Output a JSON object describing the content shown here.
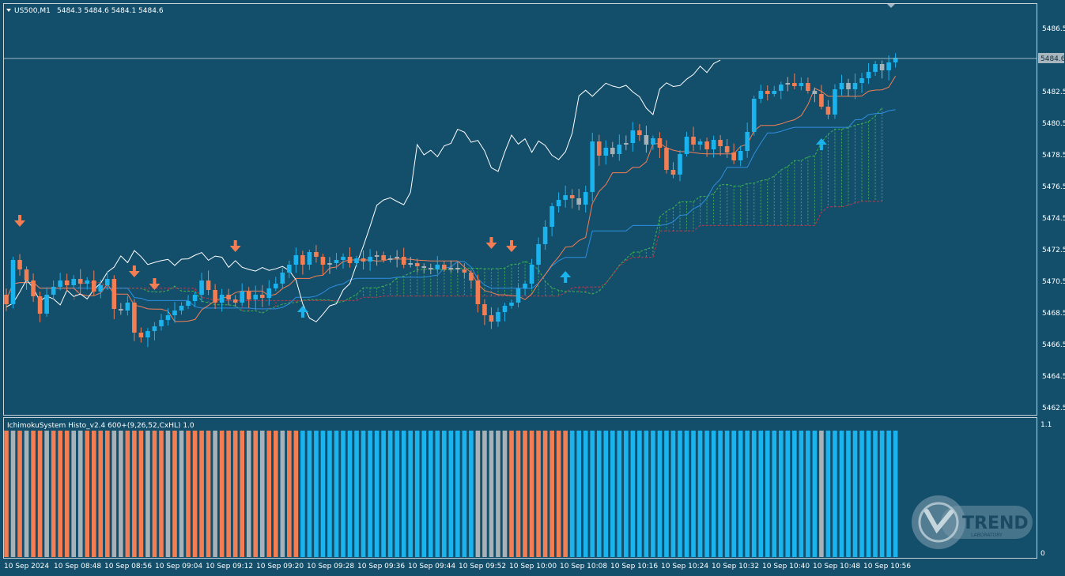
{
  "chart_header": {
    "symbol": "US500,M1",
    "ohlc": "5484.3 5484.6 5484.1 5484.6"
  },
  "indicator_header": {
    "title": "IchimokuSystem Histo_v2.4 600+(9,26,52,CxHL) 1.0"
  },
  "price_axis": {
    "ticks": [
      "5486.5",
      "5484.6",
      "5482.5",
      "5480.5",
      "5478.5",
      "5476.5",
      "5474.5",
      "5472.5",
      "5470.5",
      "5468.5",
      "5466.5",
      "5464.5",
      "5462.5"
    ],
    "current_price": "5484.6"
  },
  "indicator_axis": {
    "ticks": [
      "1.1",
      "0"
    ]
  },
  "time_axis": {
    "labels": [
      "10 Sep 2024",
      "10 Sep 08:48",
      "10 Sep 08:56",
      "10 Sep 09:04",
      "10 Sep 09:12",
      "10 Sep 09:20",
      "10 Sep 09:28",
      "10 Sep 09:36",
      "10 Sep 09:44",
      "10 Sep 09:52",
      "10 Sep 10:00",
      "10 Sep 10:08",
      "10 Sep 10:16",
      "10 Sep 10:24",
      "10 Sep 10:32",
      "10 Sep 10:40",
      "10 Sep 10:48",
      "10 Sep 10:56"
    ]
  },
  "watermark": {
    "brand": "TREND",
    "sub": "LABORATORY"
  },
  "colors": {
    "background": "#134f6b",
    "bull": "#1ab3ee",
    "bear": "#f47e54",
    "neutral": "#a7b1b8",
    "tenkan": "#f47e54",
    "kijun": "#2f8fe0",
    "chikou": "#ffffff",
    "span_a": "#3fb34f",
    "span_b": "#c3354a"
  },
  "chart_data": {
    "type": "candlestick",
    "ylim": [
      5462.0,
      5487.5
    ],
    "series": [
      {
        "name": "US500,M1",
        "kind": "candles",
        "close": [
          5469.0,
          5471.8,
          5471.2,
          5470.5,
          5469.5,
          5468.4,
          5469.6,
          5470.1,
          5470.5,
          5470.2,
          5470.6,
          5470.3,
          5470.5,
          5469.8,
          5470.2,
          5470.6,
          5468.7,
          5468.6,
          5469.1,
          5467.2,
          5466.9,
          5467.3,
          5467.6,
          5468.0,
          5468.3,
          5468.6,
          5468.9,
          5469.2,
          5469.6,
          5470.5,
          5469.9,
          5469.1,
          5469.6,
          5469.3,
          5469.1,
          5469.8,
          5469.3,
          5469.6,
          5469.4,
          5470.0,
          5470.3,
          5471.0,
          5471.5,
          5472.1,
          5471.5,
          5472.3,
          5472.0,
          5471.5,
          5471.6,
          5471.8,
          5472.0,
          5471.6,
          5471.9,
          5471.7,
          5472.0,
          5472.1,
          5471.8,
          5471.9,
          5472.0,
          5471.5,
          5471.6,
          5471.4,
          5471.3,
          5471.2,
          5471.5,
          5471.2,
          5471.3,
          5471.2,
          5471.0,
          5470.5,
          5469.0,
          5468.3,
          5467.9,
          5468.5,
          5468.9,
          5469.1,
          5470.0,
          5470.3,
          5471.5,
          5472.8,
          5473.9,
          5475.2,
          5475.6,
          5475.9,
          5475.7,
          5475.3,
          5476.1,
          5479.3,
          5478.4,
          5478.9,
          5478.5,
          5479.1,
          5479.2,
          5480.0,
          5479.7,
          5479.1,
          5479.5,
          5478.9,
          5477.5,
          5477.2,
          5478.5,
          5479.6,
          5479.1,
          5479.3,
          5478.8,
          5479.4,
          5479.0,
          5478.6,
          5478.1,
          5478.7,
          5479.9,
          5482.0,
          5482.5,
          5482.3,
          5482.5,
          5482.9,
          5483.0,
          5482.8,
          5483.0,
          5482.5,
          5482.3,
          5481.5,
          5481.0,
          5482.6,
          5483.0,
          5482.6,
          5483.0,
          5483.3,
          5483.7,
          5484.2,
          5483.8,
          5484.3,
          5484.6
        ]
      }
    ]
  }
}
